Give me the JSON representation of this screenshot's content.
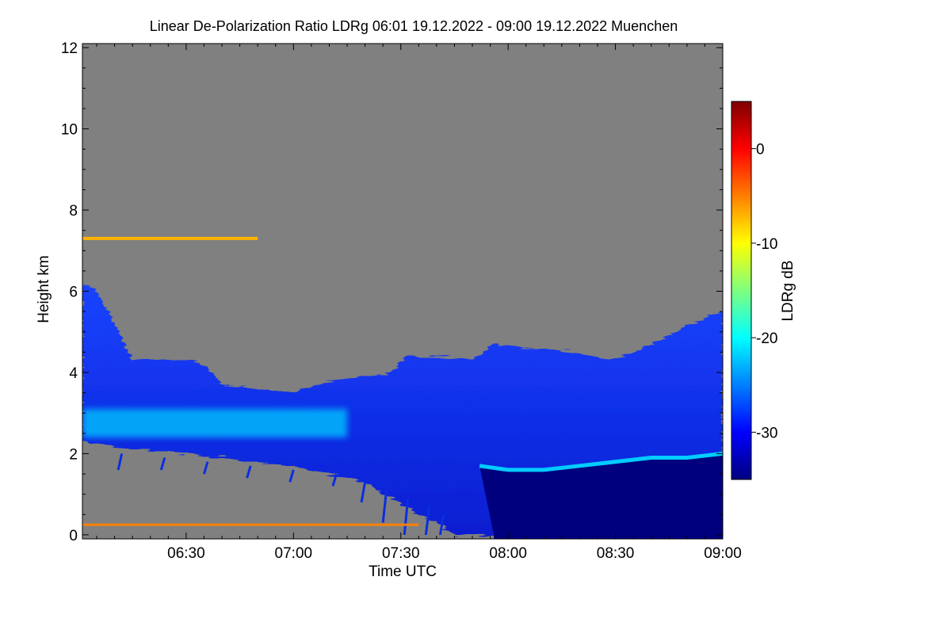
{
  "chart_data": {
    "type": "heatmap",
    "title": "Linear De-Polarization Ratio LDRg   06:01 19.12.2022 - 09:00 19.12.2022 Muenchen",
    "xlabel": "Time UTC",
    "ylabel": "Height km",
    "colorbar_label": "LDRg dB",
    "x_range_minutes": [
      361,
      540
    ],
    "x_ticks": [
      {
        "label": "06:30",
        "minutes": 390
      },
      {
        "label": "07:00",
        "minutes": 420
      },
      {
        "label": "07:30",
        "minutes": 450
      },
      {
        "label": "08:00",
        "minutes": 480
      },
      {
        "label": "08:30",
        "minutes": 510
      },
      {
        "label": "09:00",
        "minutes": 540
      }
    ],
    "y_range_km": [
      -0.1,
      12.1
    ],
    "y_ticks": [
      0,
      2,
      4,
      6,
      8,
      10,
      12
    ],
    "colorbar_range_db": [
      -35,
      5
    ],
    "colorbar_ticks": [
      0,
      -10,
      -20,
      -30
    ],
    "colors": {
      "background_no_signal": "#808080",
      "colormap": [
        "#00007f",
        "#0000ff",
        "#007fff",
        "#00ffff",
        "#7fff7f",
        "#ffff00",
        "#ff7f00",
        "#ff0000",
        "#7f0000"
      ]
    },
    "features": {
      "cloud_top_km": [
        [
          361,
          6.2
        ],
        [
          365,
          6.0
        ],
        [
          370,
          5.2
        ],
        [
          375,
          4.3
        ],
        [
          385,
          4.3
        ],
        [
          392,
          4.3
        ],
        [
          396,
          4.1
        ],
        [
          400,
          3.7
        ],
        [
          410,
          3.6
        ],
        [
          420,
          3.5
        ],
        [
          430,
          3.8
        ],
        [
          440,
          3.9
        ],
        [
          447,
          4.0
        ],
        [
          452,
          4.4
        ],
        [
          460,
          4.4
        ],
        [
          470,
          4.3
        ],
        [
          476,
          4.7
        ],
        [
          486,
          4.6
        ],
        [
          500,
          4.5
        ],
        [
          508,
          4.3
        ],
        [
          515,
          4.5
        ],
        [
          525,
          4.9
        ],
        [
          531,
          5.2
        ],
        [
          540,
          5.5
        ]
      ],
      "cloud_base_km": [
        [
          361,
          2.3
        ],
        [
          375,
          2.1
        ],
        [
          390,
          2.0
        ],
        [
          400,
          1.9
        ],
        [
          410,
          1.8
        ],
        [
          420,
          1.7
        ],
        [
          430,
          1.5
        ],
        [
          440,
          1.3
        ],
        [
          445,
          1.0
        ],
        [
          450,
          0.8
        ],
        [
          455,
          0.5
        ],
        [
          460,
          0.3
        ],
        [
          465,
          0.0
        ],
        [
          540,
          0.0
        ]
      ],
      "depolarizing_layer": {
        "time_range": [
          361,
          435
        ],
        "base_km": 2.4,
        "top_km": 3.1,
        "ldr_db": -22
      },
      "boundary_layer_top_km": [
        [
          472,
          1.7
        ],
        [
          480,
          1.6
        ],
        [
          490,
          1.6
        ],
        [
          500,
          1.7
        ],
        [
          520,
          1.9
        ],
        [
          530,
          1.9
        ],
        [
          540,
          2.0
        ]
      ],
      "saturated_region": {
        "time_range": [
          476,
          540
        ],
        "ldr_db": -35
      },
      "high_aerosol_streak": {
        "time_range": [
          361,
          410
        ],
        "height_km": 7.3,
        "ldr_db": -7
      },
      "near_ground_streak": {
        "time_range": [
          361,
          455
        ],
        "height_km": 0.25,
        "ldr_db": -5
      }
    }
  }
}
